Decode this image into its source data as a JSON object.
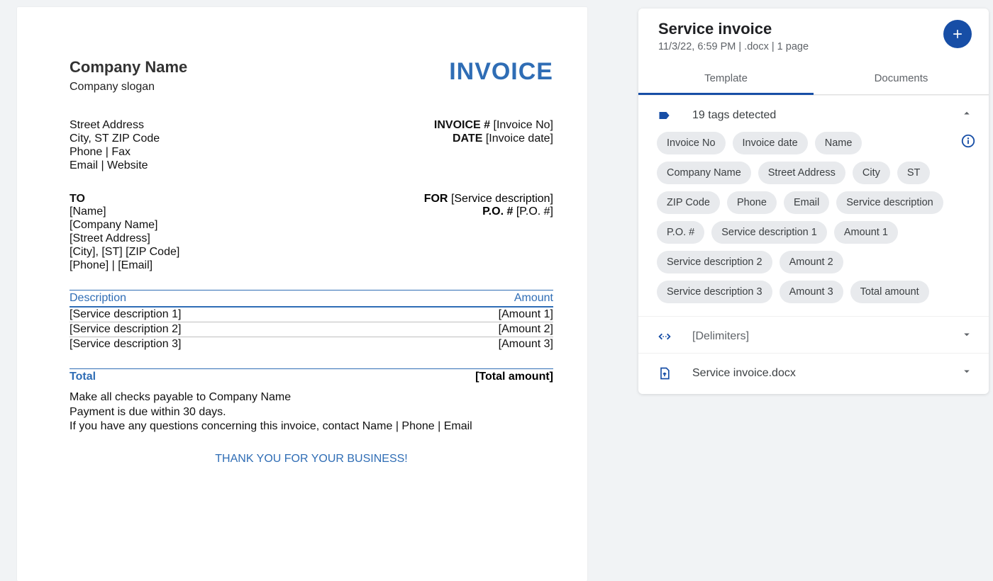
{
  "document": {
    "company_name": "Company Name",
    "company_slogan": "Company slogan",
    "invoice_word": "INVOICE",
    "address": {
      "line1": "Street Address",
      "line2": "City, ST ZIP Code",
      "line3": "Phone | Fax",
      "line4": "Email | Website"
    },
    "meta": {
      "invoice_no_label": "INVOICE #",
      "invoice_no_value": "[Invoice No]",
      "date_label": "DATE",
      "date_value": "[Invoice date]"
    },
    "to": {
      "label": "TO",
      "name": "[Name]",
      "company": "[Company Name]",
      "street": "[Street Address]",
      "city_line": "[City], [ST] [ZIP Code]",
      "phone_email": "[Phone] | [Email]"
    },
    "for": {
      "label": "FOR",
      "value": "[Service description]",
      "po_label": "P.O. #",
      "po_value": "[P.O. #]"
    },
    "table": {
      "desc_header": "Description",
      "amount_header": "Amount",
      "rows": [
        {
          "desc": "[Service description 1]",
          "amount": "[Amount 1]"
        },
        {
          "desc": "[Service description 2]",
          "amount": "[Amount 2]"
        },
        {
          "desc": "[Service description 3]",
          "amount": "[Amount 3]"
        }
      ],
      "total_label": "Total",
      "total_value": "[Total amount]"
    },
    "footer": {
      "line1": "Make all checks payable to Company Name",
      "line2": "Payment is due within 30 days.",
      "line3": "If you have any questions concerning this invoice, contact Name | Phone | Email",
      "thanks": "THANK YOU FOR YOUR BUSINESS!"
    }
  },
  "panel": {
    "title": "Service invoice",
    "subtitle": "11/3/22, 6:59 PM | .docx | 1 page",
    "tabs": {
      "template": "Template",
      "documents": "Documents"
    },
    "tags_section": {
      "summary": "19 tags detected",
      "tags": [
        "Invoice No",
        "Invoice date",
        "Name",
        "Company Name",
        "Street Address",
        "City",
        "ST",
        "ZIP Code",
        "Phone",
        "Email",
        "Service description",
        "P.O. #",
        "Service description 1",
        "Amount 1",
        "Service description 2",
        "Amount 2",
        "Service description 3",
        "Amount 3",
        "Total amount"
      ]
    },
    "delimiters_label": "[Delimiters]",
    "file_label": "Service invoice.docx"
  },
  "colors": {
    "accent_blue": "#2f6db5",
    "brand_blue": "#174ea6",
    "tag_bg": "#e8eaed",
    "page_bg": "#f1f3f5"
  }
}
